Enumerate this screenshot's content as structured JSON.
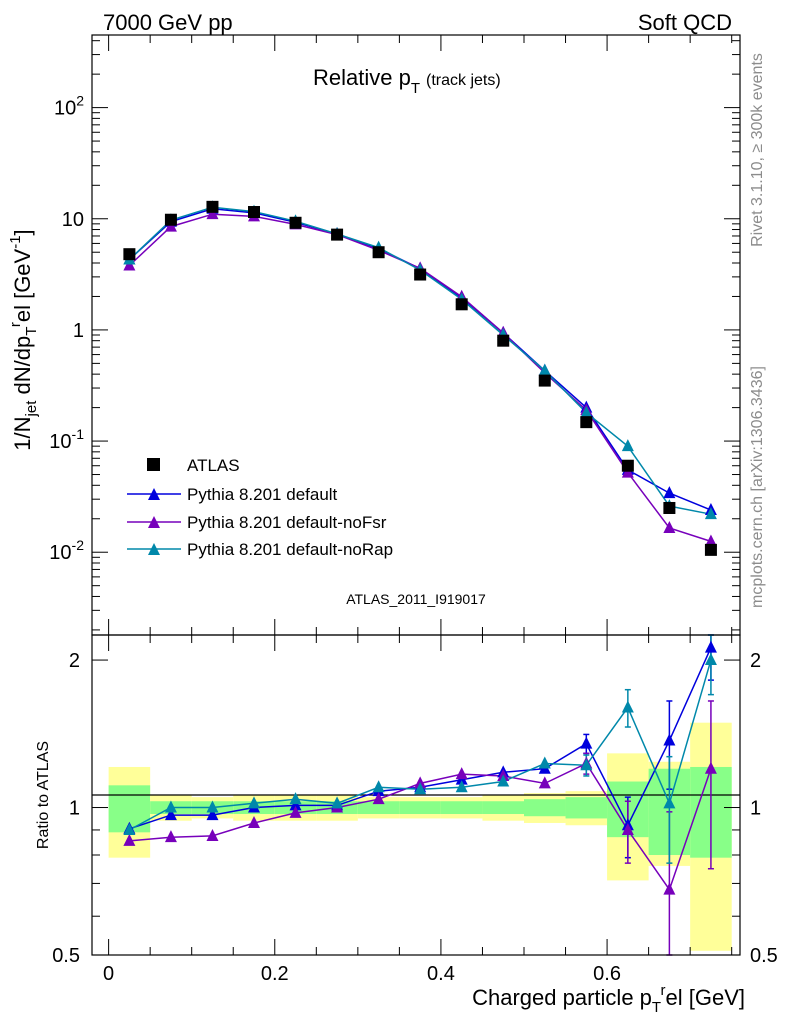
{
  "header": {
    "left": "7000 GeV pp",
    "right": "Soft QCD",
    "title_main": "Relative p",
    "title_sub": "T",
    "title_extra": "(track jets)",
    "analysis_id": "ATLAS_2011_I919017",
    "side_rivet": "Rivet 3.1.10, ≥ 300k events",
    "side_mcplots": "mcplots.cern.ch [arXiv:1306.3436]"
  },
  "axes": {
    "ylabel_main": "1/N_jet dN/dp_T^rel [GeV^-1]",
    "ylabel_ratio": "Ratio to ATLAS",
    "xlabel": "Charged particle p_T^rel [GeV]",
    "main_ylim": [
      0.0018,
      450
    ],
    "ratio_ylim": [
      0.5,
      2.25
    ],
    "xlim": [
      -0.02,
      0.76
    ],
    "main_yticks": [
      "10^-2",
      "10^-1",
      "1",
      "10",
      "10^2"
    ],
    "ratio_yticks": [
      "0.5",
      "1",
      "2"
    ],
    "xticks": [
      "0",
      "0.2",
      "0.4",
      "0.6"
    ]
  },
  "legend": {
    "atlas": "ATLAS",
    "default": "Pythia 8.201 default",
    "nofsr": "Pythia 8.201 default-noFsr",
    "norap": "Pythia 8.201 default-noRap"
  },
  "colors": {
    "atlas": "#000000",
    "default": "#0000dd",
    "nofsr": "#7700bb",
    "norap": "#0088aa",
    "band_outer": "#ffff99",
    "band_inner": "#88ff88"
  },
  "chart_data": {
    "type": "scatter",
    "log_y": true,
    "x": [
      0.025,
      0.075,
      0.125,
      0.175,
      0.225,
      0.275,
      0.325,
      0.375,
      0.425,
      0.475,
      0.525,
      0.575,
      0.625,
      0.675,
      0.725
    ],
    "x_edges": [
      0.0,
      0.05,
      0.1,
      0.15,
      0.2,
      0.25,
      0.3,
      0.35,
      0.4,
      0.45,
      0.5,
      0.55,
      0.6,
      0.65,
      0.7,
      0.75
    ],
    "series": [
      {
        "name": "ATLAS",
        "values": [
          4.8,
          9.8,
          12.8,
          11.5,
          9.2,
          7.2,
          5.0,
          3.15,
          1.7,
          0.8,
          0.35,
          0.148,
          0.06,
          0.025,
          0.0105
        ]
      },
      {
        "name": "Pythia 8.201 default",
        "values": [
          4.3,
          9.4,
          12.3,
          11.3,
          9.3,
          7.3,
          5.4,
          3.55,
          1.95,
          0.94,
          0.43,
          0.2,
          0.055,
          0.034,
          0.024
        ]
      },
      {
        "name": "Pythia 8.201 default-noFsr",
        "values": [
          3.8,
          8.5,
          11.0,
          10.5,
          8.9,
          7.2,
          5.2,
          3.58,
          1.99,
          0.94,
          0.41,
          0.19,
          0.052,
          0.0165,
          0.0125
        ]
      },
      {
        "name": "Pythia 8.201 default-noRap",
        "values": [
          4.3,
          9.7,
          12.7,
          11.6,
          9.5,
          7.3,
          5.5,
          3.45,
          1.88,
          0.9,
          0.43,
          0.18,
          0.09,
          0.026,
          0.022
        ]
      }
    ],
    "ratio": {
      "default": [
        0.905,
        0.965,
        0.965,
        1.0,
        1.01,
        1.01,
        1.08,
        1.1,
        1.14,
        1.18,
        1.2,
        1.35,
        0.92,
        1.37,
        2.12
      ],
      "nofsr": [
        0.855,
        0.87,
        0.875,
        0.93,
        0.975,
        1.0,
        1.04,
        1.12,
        1.17,
        1.16,
        1.12,
        1.23,
        0.9,
        0.68,
        1.2
      ],
      "norap": [
        0.9,
        1.0,
        1.0,
        1.02,
        1.04,
        1.02,
        1.1,
        1.09,
        1.1,
        1.13,
        1.23,
        1.22,
        1.6,
        1.02,
        2.0
      ],
      "band_outer_half": [
        0.21,
        0.06,
        0.05,
        0.06,
        0.06,
        0.06,
        0.05,
        0.05,
        0.05,
        0.06,
        0.07,
        0.08,
        0.29,
        0.24,
        0.49
      ],
      "band_inner_half": [
        0.11,
        0.03,
        0.03,
        0.03,
        0.03,
        0.03,
        0.03,
        0.03,
        0.03,
        0.03,
        0.04,
        0.05,
        0.13,
        0.2,
        0.21
      ],
      "err_default": [
        0.02,
        0.01,
        0.01,
        0.01,
        0.01,
        0.01,
        0.02,
        0.02,
        0.02,
        0.03,
        0.04,
        0.06,
        0.13,
        0.28,
        0.3
      ],
      "err_nofsr": [
        0.02,
        0.01,
        0.01,
        0.01,
        0.01,
        0.01,
        0.02,
        0.02,
        0.03,
        0.03,
        0.04,
        0.06,
        0.13,
        0.3,
        0.45
      ],
      "err_norap": [
        0.02,
        0.01,
        0.01,
        0.01,
        0.01,
        0.01,
        0.02,
        0.02,
        0.02,
        0.03,
        0.04,
        0.06,
        0.14,
        0.25,
        0.3
      ]
    }
  }
}
